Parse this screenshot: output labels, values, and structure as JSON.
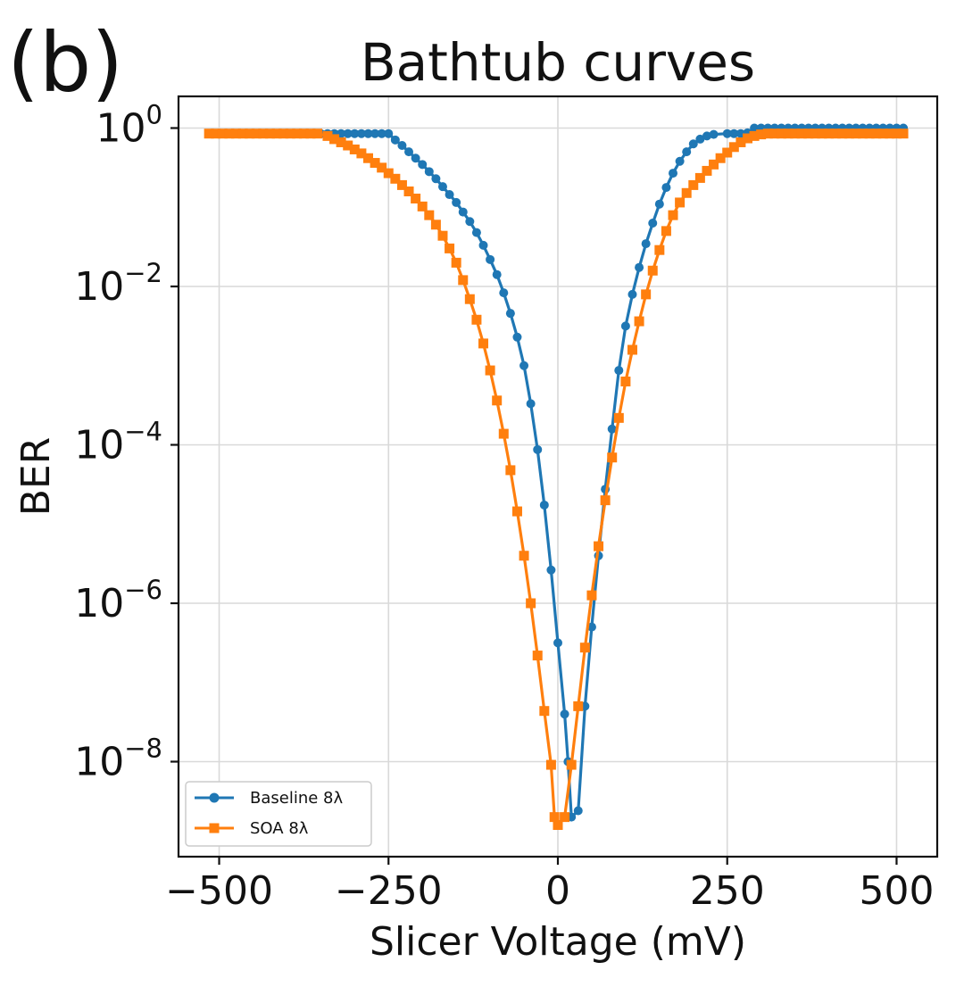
{
  "panel_label": "(b)",
  "chart_data": {
    "type": "line",
    "title": "Bathtub curves",
    "xlabel": "Slicer Voltage (mV)",
    "ylabel": "BER",
    "xlim": [
      -560,
      560
    ],
    "ylim_log10": [
      -9.2,
      0.4
    ],
    "yscale": "log",
    "grid": true,
    "legend_position": "lower-left",
    "x_ticks": [
      {
        "value": -500,
        "label": "−500"
      },
      {
        "value": -250,
        "label": "−250"
      },
      {
        "value": 0,
        "label": "0"
      },
      {
        "value": 250,
        "label": "250"
      },
      {
        "value": 500,
        "label": "500"
      }
    ],
    "y_ticks": [
      {
        "exp": 0,
        "base": "10",
        "sup": "0"
      },
      {
        "exp": -2,
        "base": "10",
        "sup": "−2"
      },
      {
        "exp": -4,
        "base": "10",
        "sup": "−4"
      },
      {
        "exp": -6,
        "base": "10",
        "sup": "−6"
      },
      {
        "exp": -8,
        "base": "10",
        "sup": "−8"
      }
    ],
    "series": [
      {
        "name": "Baseline 8λ",
        "color": "#1f77b4",
        "marker": "circle",
        "points_log10": [
          [
            -370,
            -0.07
          ],
          [
            -360,
            -0.07
          ],
          [
            -350,
            -0.07
          ],
          [
            -340,
            -0.07
          ],
          [
            -330,
            -0.07
          ],
          [
            -320,
            -0.07
          ],
          [
            -310,
            -0.07
          ],
          [
            -300,
            -0.07
          ],
          [
            -290,
            -0.07
          ],
          [
            -280,
            -0.07
          ],
          [
            -270,
            -0.07
          ],
          [
            -260,
            -0.07
          ],
          [
            -250,
            -0.07
          ],
          [
            -240,
            -0.15
          ],
          [
            -230,
            -0.22
          ],
          [
            -220,
            -0.3
          ],
          [
            -210,
            -0.38
          ],
          [
            -200,
            -0.46
          ],
          [
            -190,
            -0.55
          ],
          [
            -180,
            -0.64
          ],
          [
            -170,
            -0.74
          ],
          [
            -160,
            -0.84
          ],
          [
            -150,
            -0.94
          ],
          [
            -140,
            -1.06
          ],
          [
            -130,
            -1.18
          ],
          [
            -120,
            -1.32
          ],
          [
            -110,
            -1.48
          ],
          [
            -100,
            -1.66
          ],
          [
            -90,
            -1.85
          ],
          [
            -80,
            -2.08
          ],
          [
            -70,
            -2.34
          ],
          [
            -60,
            -2.64
          ],
          [
            -50,
            -3.0
          ],
          [
            -40,
            -3.48
          ],
          [
            -30,
            -4.06
          ],
          [
            -20,
            -4.76
          ],
          [
            -10,
            -5.58
          ],
          [
            0,
            -6.5
          ],
          [
            10,
            -7.4
          ],
          [
            15,
            -8.0
          ],
          [
            20,
            -8.7
          ],
          [
            30,
            -8.62
          ],
          [
            40,
            -7.3
          ],
          [
            50,
            -6.3
          ],
          [
            60,
            -5.4
          ],
          [
            70,
            -4.56
          ],
          [
            80,
            -3.8
          ],
          [
            90,
            -3.06
          ],
          [
            100,
            -2.5
          ],
          [
            110,
            -2.1
          ],
          [
            120,
            -1.76
          ],
          [
            130,
            -1.46
          ],
          [
            140,
            -1.2
          ],
          [
            150,
            -0.96
          ],
          [
            160,
            -0.75
          ],
          [
            170,
            -0.57
          ],
          [
            180,
            -0.42
          ],
          [
            190,
            -0.3
          ],
          [
            200,
            -0.2
          ],
          [
            210,
            -0.14
          ],
          [
            220,
            -0.1
          ],
          [
            230,
            -0.08
          ],
          [
            250,
            -0.07
          ],
          [
            260,
            -0.07
          ],
          [
            270,
            -0.07
          ],
          [
            280,
            -0.06
          ],
          [
            290,
            0.0
          ],
          [
            300,
            0.0
          ],
          [
            310,
            0.0
          ],
          [
            320,
            0.0
          ],
          [
            330,
            0.0
          ],
          [
            340,
            0.0
          ],
          [
            350,
            0.0
          ],
          [
            360,
            0.0
          ],
          [
            370,
            0.0
          ],
          [
            380,
            0.0
          ],
          [
            390,
            0.0
          ],
          [
            400,
            0.0
          ],
          [
            410,
            0.0
          ],
          [
            420,
            0.0
          ],
          [
            430,
            0.0
          ],
          [
            440,
            0.0
          ],
          [
            450,
            0.0
          ],
          [
            460,
            0.0
          ],
          [
            470,
            0.0
          ],
          [
            480,
            0.0
          ],
          [
            490,
            0.0
          ],
          [
            500,
            0.0
          ],
          [
            510,
            0.0
          ]
        ]
      },
      {
        "name": "SOA 8λ",
        "color": "#ff7f0e",
        "marker": "square",
        "points_log10": [
          [
            -515,
            -0.07
          ],
          [
            -505,
            -0.07
          ],
          [
            -495,
            -0.07
          ],
          [
            -485,
            -0.07
          ],
          [
            -475,
            -0.07
          ],
          [
            -465,
            -0.07
          ],
          [
            -455,
            -0.07
          ],
          [
            -445,
            -0.07
          ],
          [
            -435,
            -0.07
          ],
          [
            -425,
            -0.07
          ],
          [
            -415,
            -0.07
          ],
          [
            -405,
            -0.07
          ],
          [
            -395,
            -0.07
          ],
          [
            -385,
            -0.07
          ],
          [
            -375,
            -0.07
          ],
          [
            -365,
            -0.07
          ],
          [
            -355,
            -0.07
          ],
          [
            -340,
            -0.1
          ],
          [
            -330,
            -0.14
          ],
          [
            -320,
            -0.18
          ],
          [
            -310,
            -0.22
          ],
          [
            -300,
            -0.27
          ],
          [
            -290,
            -0.32
          ],
          [
            -280,
            -0.38
          ],
          [
            -270,
            -0.44
          ],
          [
            -260,
            -0.5
          ],
          [
            -250,
            -0.57
          ],
          [
            -240,
            -0.64
          ],
          [
            -230,
            -0.72
          ],
          [
            -220,
            -0.8
          ],
          [
            -210,
            -0.89
          ],
          [
            -200,
            -0.99
          ],
          [
            -190,
            -1.1
          ],
          [
            -180,
            -1.22
          ],
          [
            -170,
            -1.36
          ],
          [
            -160,
            -1.52
          ],
          [
            -150,
            -1.7
          ],
          [
            -140,
            -1.92
          ],
          [
            -130,
            -2.16
          ],
          [
            -120,
            -2.42
          ],
          [
            -110,
            -2.72
          ],
          [
            -100,
            -3.06
          ],
          [
            -90,
            -3.44
          ],
          [
            -80,
            -3.86
          ],
          [
            -70,
            -4.32
          ],
          [
            -60,
            -4.84
          ],
          [
            -50,
            -5.4
          ],
          [
            -40,
            -6.0
          ],
          [
            -30,
            -6.66
          ],
          [
            -20,
            -7.36
          ],
          [
            -10,
            -8.04
          ],
          [
            -5,
            -8.7
          ],
          [
            0,
            -8.8
          ],
          [
            10,
            -8.7
          ],
          [
            20,
            -8.04
          ],
          [
            30,
            -7.3
          ],
          [
            40,
            -6.56
          ],
          [
            50,
            -5.9
          ],
          [
            60,
            -5.28
          ],
          [
            70,
            -4.7
          ],
          [
            80,
            -4.16
          ],
          [
            90,
            -3.66
          ],
          [
            100,
            -3.2
          ],
          [
            110,
            -2.8
          ],
          [
            120,
            -2.44
          ],
          [
            130,
            -2.1
          ],
          [
            140,
            -1.8
          ],
          [
            150,
            -1.54
          ],
          [
            160,
            -1.3
          ],
          [
            170,
            -1.1
          ],
          [
            180,
            -0.94
          ],
          [
            190,
            -0.82
          ],
          [
            200,
            -0.72
          ],
          [
            210,
            -0.63
          ],
          [
            220,
            -0.54
          ],
          [
            230,
            -0.46
          ],
          [
            240,
            -0.38
          ],
          [
            250,
            -0.31
          ],
          [
            260,
            -0.24
          ],
          [
            270,
            -0.18
          ],
          [
            280,
            -0.13
          ],
          [
            290,
            -0.1
          ],
          [
            300,
            -0.08
          ],
          [
            310,
            -0.07
          ],
          [
            320,
            -0.07
          ],
          [
            330,
            -0.07
          ],
          [
            340,
            -0.07
          ],
          [
            350,
            -0.07
          ],
          [
            360,
            -0.07
          ],
          [
            370,
            -0.07
          ],
          [
            380,
            -0.07
          ],
          [
            390,
            -0.07
          ],
          [
            400,
            -0.07
          ],
          [
            410,
            -0.07
          ],
          [
            420,
            -0.07
          ],
          [
            430,
            -0.07
          ],
          [
            440,
            -0.07
          ],
          [
            450,
            -0.07
          ],
          [
            460,
            -0.07
          ],
          [
            470,
            -0.07
          ],
          [
            480,
            -0.07
          ],
          [
            490,
            -0.07
          ],
          [
            500,
            -0.07
          ],
          [
            510,
            -0.07
          ]
        ]
      }
    ]
  }
}
